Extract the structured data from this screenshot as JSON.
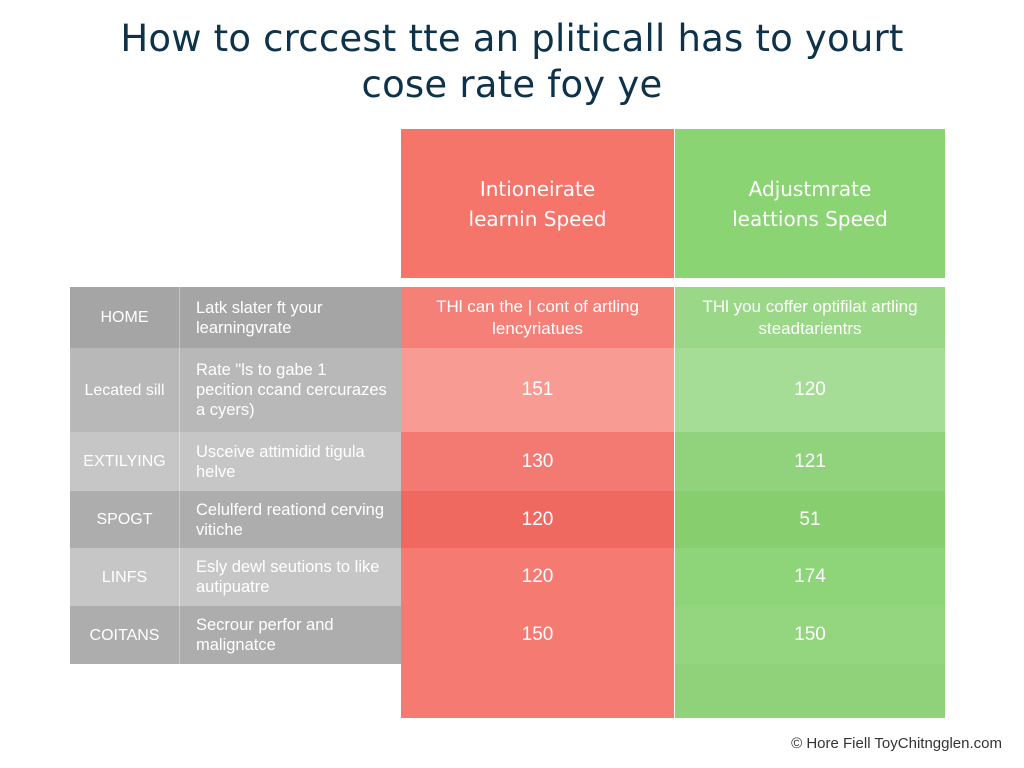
{
  "title": {
    "line1": "How to crccest tte an pliticall has to yourt",
    "line2": "cose rate foy ye"
  },
  "columns": {
    "left": {
      "line1": "Intioneirate",
      "line2": "learnin Speed",
      "color": "#f6756b"
    },
    "right": {
      "line1": "Adjustmrate",
      "line2": "leattions Speed",
      "color": "#8bd473"
    }
  },
  "rows": [
    {
      "label": "HOME",
      "desc": "Latk slater ft your learningvrate",
      "left": "THl can the | cont of artling lencyriatues",
      "right": "THl you coffer optifilat artling steadtarientrs"
    },
    {
      "label": "Lecated sill",
      "desc": "Rate \"ls to gabe 1 pecition ccand cercurazes a cyers)",
      "left": "151",
      "right": "120"
    },
    {
      "label": "EXTILYING",
      "desc": "Usceive attimidid tigula helve",
      "left": "130",
      "right": "121"
    },
    {
      "label": "SPOGT",
      "desc": "Celulferd reationd cerving vitiche",
      "left": "120",
      "right": "51"
    },
    {
      "label": "LINFS",
      "desc": "Esly dewl seutions to like autipuatre",
      "left": "120",
      "right": "174"
    },
    {
      "label": "COITANS",
      "desc": "Secrour perfor and malignatce",
      "left": "150",
      "right": "150"
    }
  ],
  "footer": "© Hore Fiell ToyChitngglen.com"
}
